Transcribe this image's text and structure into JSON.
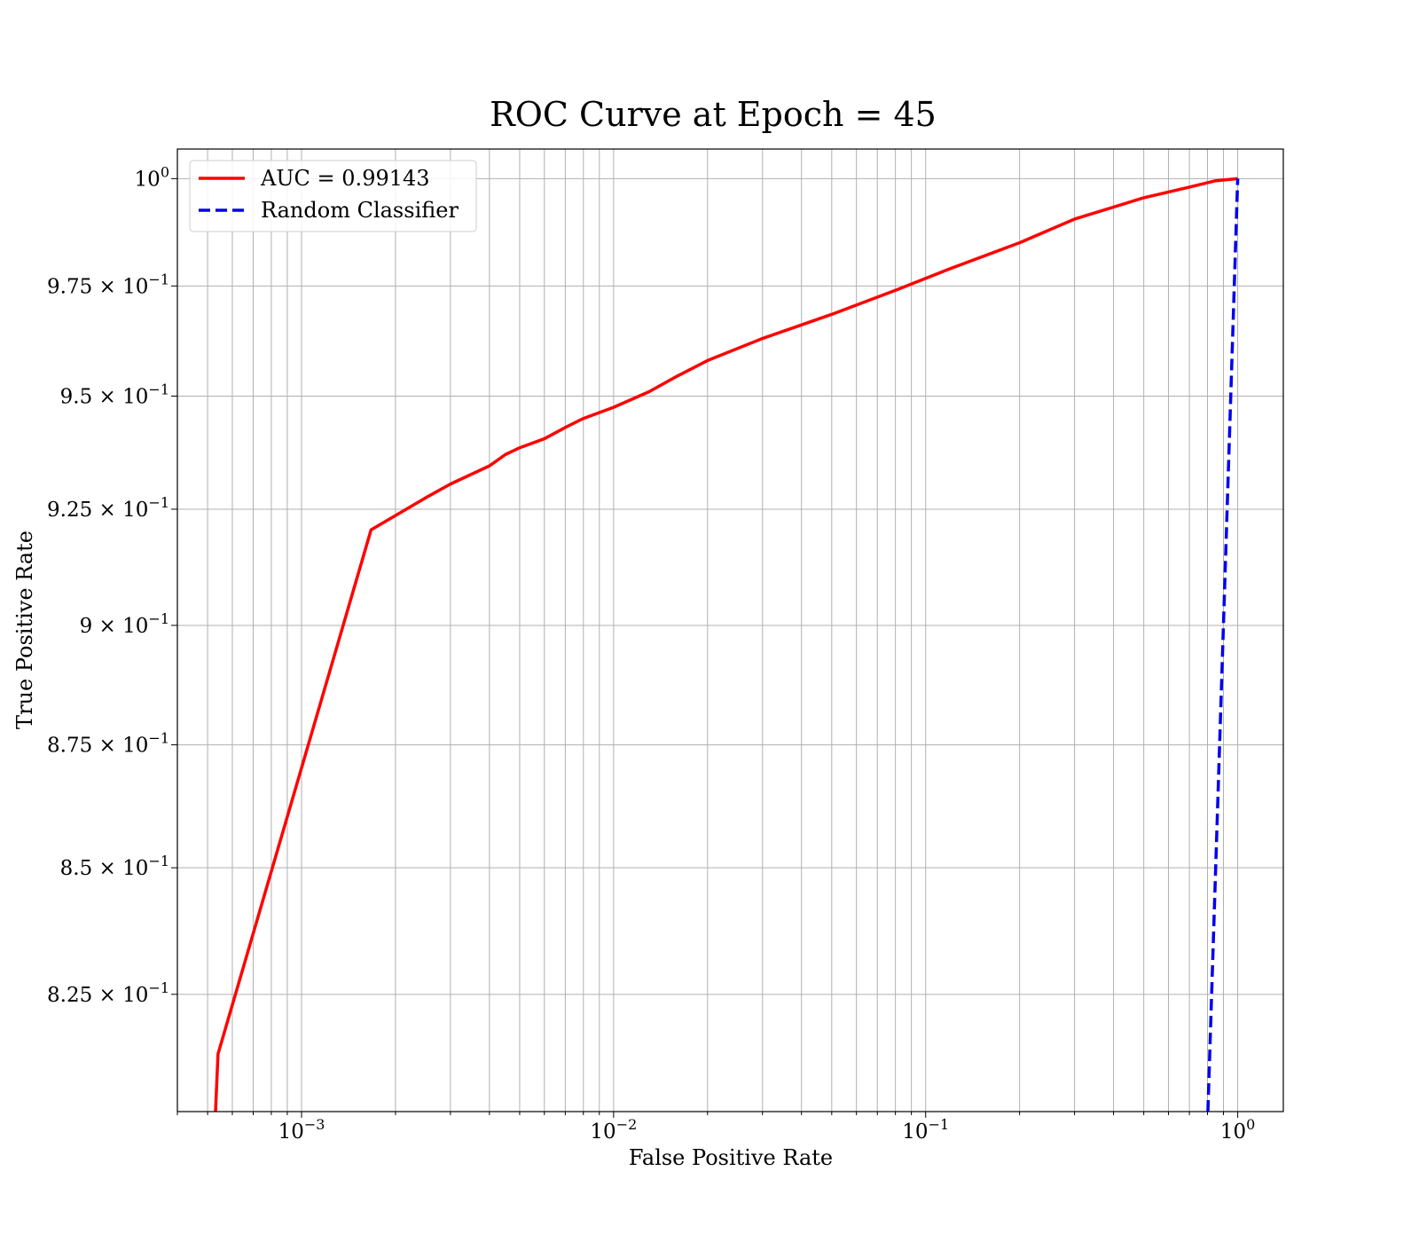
{
  "chart_data": {
    "type": "line",
    "title": "ROC Curve at Epoch = 45",
    "xlabel": "False Positive Rate",
    "ylabel": "True Positive Rate",
    "xscale": "log",
    "yscale": "log",
    "xlim": [
      0.0004,
      1.4
    ],
    "ylim": [
      0.8025,
      1.007
    ],
    "grid": true,
    "legend_position": "top-left",
    "x_ticks": [
      {
        "value": 0.001,
        "base": "10",
        "exp": "−3"
      },
      {
        "value": 0.01,
        "base": "10",
        "exp": "−2"
      },
      {
        "value": 0.1,
        "base": "10",
        "exp": "−1"
      },
      {
        "value": 1,
        "base": "10",
        "exp": "0"
      }
    ],
    "y_ticks": [
      {
        "value": 1.0,
        "mant": "",
        "base": "10",
        "exp": "0"
      },
      {
        "value": 0.975,
        "mant": "9.75 × ",
        "base": "10",
        "exp": "−1"
      },
      {
        "value": 0.95,
        "mant": "9.5 × ",
        "base": "10",
        "exp": "−1"
      },
      {
        "value": 0.925,
        "mant": "9.25 × ",
        "base": "10",
        "exp": "−1"
      },
      {
        "value": 0.9,
        "mant": "9 × ",
        "base": "10",
        "exp": "−1"
      },
      {
        "value": 0.875,
        "mant": "8.75 × ",
        "base": "10",
        "exp": "−1"
      },
      {
        "value": 0.85,
        "mant": "8.5 × ",
        "base": "10",
        "exp": "−1"
      },
      {
        "value": 0.825,
        "mant": "8.25 × ",
        "base": "10",
        "exp": "−1"
      }
    ],
    "series": [
      {
        "name": "AUC = 0.99143",
        "color": "#ff0000",
        "style": "solid",
        "x": [
          0.00053,
          0.00054,
          0.00167,
          0.0025,
          0.003,
          0.004,
          0.0045,
          0.005,
          0.006,
          0.007,
          0.008,
          0.01,
          0.013,
          0.016,
          0.02,
          0.03,
          0.05,
          0.08,
          0.12,
          0.2,
          0.3,
          0.5,
          0.7,
          0.85,
          1.0
        ],
        "y": [
          0.8025,
          0.8135,
          0.9205,
          0.9275,
          0.9305,
          0.9345,
          0.937,
          0.9385,
          0.9405,
          0.943,
          0.945,
          0.9475,
          0.951,
          0.9545,
          0.958,
          0.963,
          0.9685,
          0.974,
          0.979,
          0.985,
          0.9905,
          0.9955,
          0.998,
          0.9995,
          1.0
        ]
      },
      {
        "name": "Random Classifier",
        "color": "#0000ee",
        "style": "dashed",
        "x": [
          0.8025,
          1.0
        ],
        "y": [
          0.8025,
          1.0
        ]
      }
    ]
  }
}
